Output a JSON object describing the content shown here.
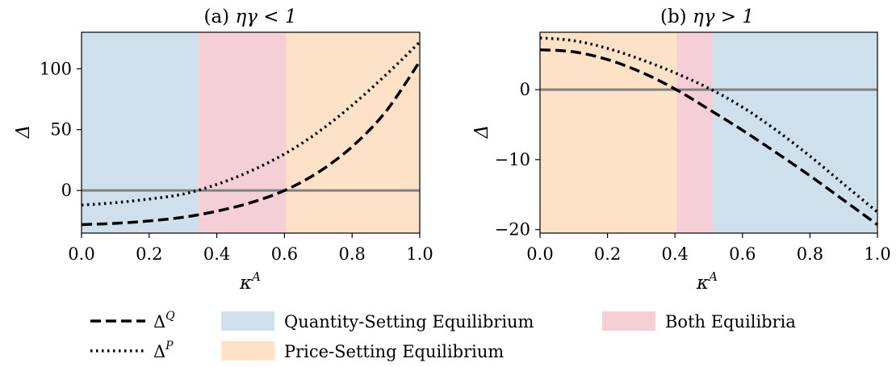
{
  "chart_data": [
    {
      "type": "line",
      "title": "(a) ηγ < 1",
      "xlabel": "κA",
      "ylabel": "Δ",
      "xlim": [
        0.0,
        1.0
      ],
      "ylim": [
        -35,
        130
      ],
      "xticks": [
        "0.0",
        "0.2",
        "0.4",
        "0.6",
        "0.8",
        "1.0"
      ],
      "yticks": [
        "0",
        "50",
        "100"
      ],
      "grid": false,
      "regions": [
        {
          "name": "Quantity-Setting Equilibrium",
          "x": [
            0.0,
            0.345
          ]
        },
        {
          "name": "Both Equilibria",
          "x": [
            0.345,
            0.605
          ]
        },
        {
          "name": "Price-Setting Equilibrium",
          "x": [
            0.605,
            1.0
          ]
        }
      ],
      "hline": 0,
      "series": [
        {
          "name": "ΔQ",
          "style": "dashed",
          "x": [
            0.0,
            0.1,
            0.2,
            0.3,
            0.4,
            0.5,
            0.6,
            0.7,
            0.8,
            0.9,
            1.0
          ],
          "values": [
            -28,
            -27,
            -25,
            -22,
            -17,
            -10,
            0,
            15,
            36,
            65,
            106
          ]
        },
        {
          "name": "ΔP",
          "style": "dotted",
          "x": [
            0.0,
            0.1,
            0.2,
            0.3,
            0.4,
            0.5,
            0.6,
            0.7,
            0.8,
            0.9,
            1.0
          ],
          "values": [
            -12,
            -10,
            -7,
            -3,
            5,
            16,
            30,
            48,
            70,
            95,
            122
          ]
        }
      ]
    },
    {
      "type": "line",
      "title": "(b) ηγ > 1",
      "xlabel": "κA",
      "ylabel": "Δ",
      "xlim": [
        0.0,
        1.0
      ],
      "ylim": [
        -20.5,
        8.2
      ],
      "xticks": [
        "0.0",
        "0.2",
        "0.4",
        "0.6",
        "0.8",
        "1.0"
      ],
      "yticks": [
        "0",
        "−10",
        "−20"
      ],
      "grid": false,
      "regions": [
        {
          "name": "Price-Setting Equilibrium",
          "x": [
            0.0,
            0.405
          ]
        },
        {
          "name": "Both Equilibria",
          "x": [
            0.405,
            0.512
          ]
        },
        {
          "name": "Quantity-Setting Equilibrium",
          "x": [
            0.512,
            1.0
          ]
        }
      ],
      "hline": 0,
      "series": [
        {
          "name": "ΔQ",
          "style": "dashed",
          "x": [
            0.0,
            0.1,
            0.2,
            0.3,
            0.4,
            0.5,
            0.6,
            0.7,
            0.8,
            0.9,
            1.0
          ],
          "values": [
            5.7,
            5.4,
            4.3,
            2.5,
            0.1,
            -2.8,
            -5.8,
            -9.0,
            -12.3,
            -15.8,
            -19.3
          ]
        },
        {
          "name": "ΔP",
          "style": "dotted",
          "x": [
            0.0,
            0.1,
            0.2,
            0.3,
            0.4,
            0.5,
            0.6,
            0.7,
            0.8,
            0.9,
            1.0
          ],
          "values": [
            7.4,
            7.0,
            5.9,
            4.3,
            2.4,
            0.2,
            -2.5,
            -5.8,
            -9.5,
            -13.5,
            -17.5
          ]
        }
      ]
    }
  ],
  "colors": {
    "quantity_region": "#cfe0ed",
    "price_region": "#fde2c7",
    "both_region": "#f4cfd6",
    "zero_line": "#808080",
    "series": "#000000"
  },
  "legend": {
    "dq_base": "Δ",
    "dq_sup": "Q",
    "dp_base": "Δ",
    "dp_sup": "P",
    "quantity": "Quantity-Setting Equilibrium",
    "price": "Price-Setting Equilibrium",
    "both": "Both Equilibria"
  },
  "panels": {
    "a_title_label": "(a) ",
    "a_title_math": "ηγ < 1",
    "b_title_label": "(b) ",
    "b_title_math": "ηγ > 1",
    "xlabel_base": "κ",
    "xlabel_sup": "A",
    "ylabel": "Δ"
  }
}
